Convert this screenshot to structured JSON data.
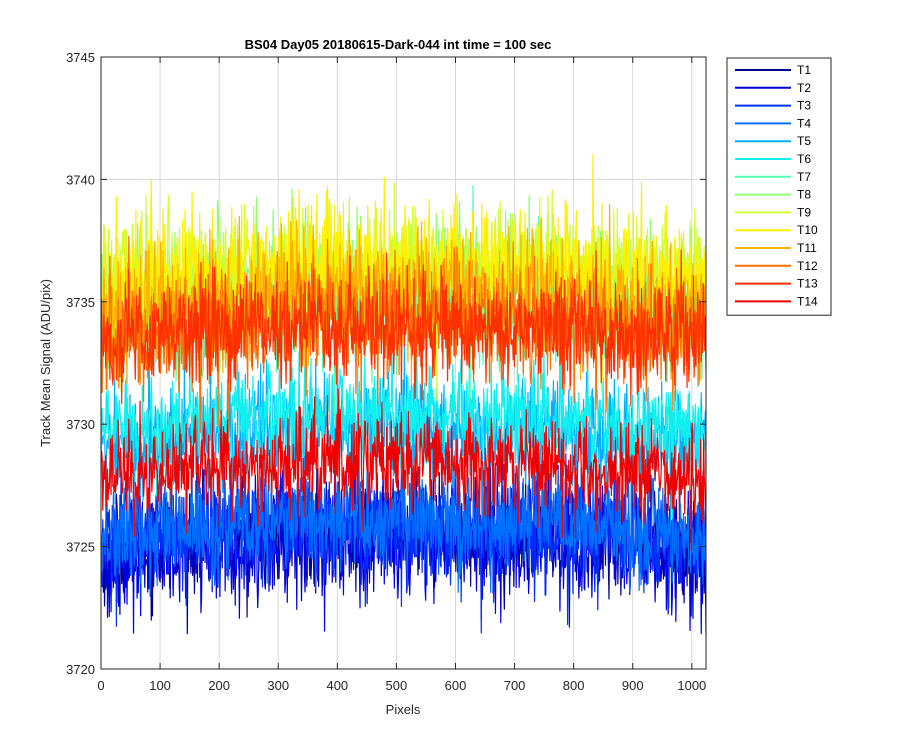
{
  "chart_data": {
    "type": "line",
    "title": "BS04 Day05 20180615-Dark-044 int time = 100 sec",
    "xlabel": "Pixels",
    "ylabel": "Track Mean Signal (ADU/pix)",
    "xlim": [
      0,
      1024
    ],
    "ylim": [
      3720,
      3745
    ],
    "xticks": [
      "0",
      "100",
      "200",
      "300",
      "400",
      "500",
      "600",
      "700",
      "800",
      "900",
      "1000"
    ],
    "yticks": [
      "3720",
      "3725",
      "3730",
      "3735",
      "3740",
      "3745"
    ],
    "grid": true,
    "legend_position": "outside-top-right",
    "x_samples": 1024,
    "series": [
      {
        "name": "T1",
        "color": "#00008f",
        "mean": 3725.4,
        "spread": 1.1
      },
      {
        "name": "T2",
        "color": "#0000df",
        "mean": 3725.0,
        "spread": 1.2
      },
      {
        "name": "T3",
        "color": "#0030ff",
        "mean": 3725.6,
        "spread": 1.1
      },
      {
        "name": "T4",
        "color": "#0070ff",
        "mean": 3725.8,
        "spread": 1.0
      },
      {
        "name": "T5",
        "color": "#00b0ff",
        "mean": 3729.6,
        "spread": 1.1
      },
      {
        "name": "T6",
        "color": "#10f0ef",
        "mean": 3730.2,
        "spread": 1.0
      },
      {
        "name": "T7",
        "color": "#50ffaf",
        "mean": 3734.6,
        "spread": 1.2
      },
      {
        "name": "T8",
        "color": "#8fff70",
        "mean": 3735.6,
        "spread": 1.2
      },
      {
        "name": "T9",
        "color": "#cfff30",
        "mean": 3736.0,
        "spread": 1.3
      },
      {
        "name": "T10",
        "color": "#ffef00",
        "mean": 3736.2,
        "spread": 1.3
      },
      {
        "name": "T11",
        "color": "#ffaf00",
        "mean": 3735.0,
        "spread": 1.2
      },
      {
        "name": "T12",
        "color": "#ff7000",
        "mean": 3734.0,
        "spread": 1.2
      },
      {
        "name": "T13",
        "color": "#ff3000",
        "mean": 3733.8,
        "spread": 1.1
      },
      {
        "name": "T14",
        "color": "#ef0000",
        "mean": 3728.2,
        "spread": 1.0
      }
    ]
  }
}
